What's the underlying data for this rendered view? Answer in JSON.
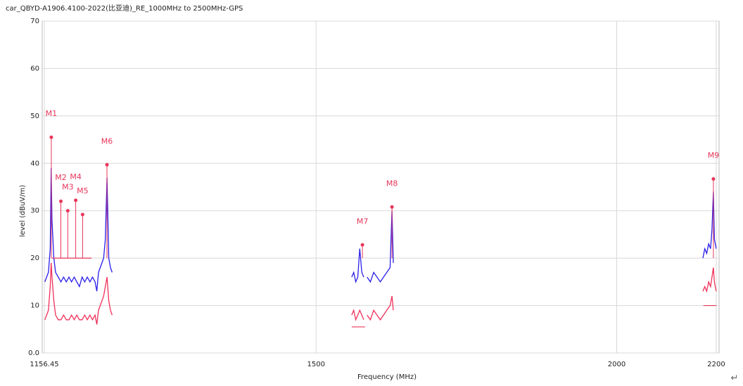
{
  "chart_data": {
    "type": "line",
    "title": "car_QBYD-A1906.4100-2022(比亚迪)_RE_1000MHz to 2500MHz-GPS",
    "xlabel": "Frequency (MHz)",
    "ylabel": "level (dBuV/m)",
    "xlog": true,
    "grid": true,
    "xlim": [
      1156.45,
      2200
    ],
    "ylim": [
      0,
      70
    ],
    "xticks": [
      1156.45,
      1500,
      2000,
      2200
    ],
    "yticks": [
      {
        "value": 0,
        "label": "0.0"
      },
      10,
      20,
      30,
      40,
      50,
      60,
      70
    ],
    "x": [
      1157,
      1159,
      1161,
      1163,
      1164,
      1165,
      1167,
      1169,
      1172,
      1175,
      1178,
      1181,
      1184,
      1187,
      1190,
      1193,
      1196,
      1199,
      1202,
      1205,
      1208,
      1211,
      1214,
      1216,
      1218,
      1220,
      1222,
      1224,
      1226,
      1228,
      1230,
      1232,
      1234,
      1236,
      1552,
      1555,
      1558,
      1561,
      1564,
      1567,
      1570,
      1572,
      1575,
      1580,
      1585,
      1590,
      1595,
      1600,
      1605,
      1610,
      1613,
      1615,
      1618,
      2172,
      2176,
      2180,
      2184,
      2188,
      2191,
      2194,
      2196,
      2198,
      2200
    ],
    "series": [
      {
        "color": "#2a1ee8",
        "values": [
          15,
          16,
          17,
          22,
          39,
          28,
          20,
          17,
          16,
          15,
          16,
          15,
          16,
          15,
          16,
          15,
          14,
          16,
          15,
          16,
          15,
          16,
          15,
          13,
          17,
          18,
          19,
          20,
          24,
          37,
          20,
          18,
          17,
          null,
          16,
          17,
          15,
          16,
          22,
          17,
          16,
          null,
          16,
          15,
          17,
          16,
          15,
          16,
          17,
          18,
          30,
          19,
          null,
          20,
          22,
          21,
          23,
          22,
          26,
          34,
          24,
          23,
          22
        ]
      },
      {
        "color": "#f0305a",
        "values": [
          7,
          8,
          9,
          14,
          19,
          16,
          11,
          8,
          7,
          7,
          8,
          7,
          7,
          8,
          7,
          8,
          7,
          7,
          8,
          7,
          8,
          7,
          8,
          6,
          9,
          10,
          11,
          12,
          14,
          16,
          11,
          9,
          8,
          null,
          8,
          9,
          7,
          8,
          9,
          8,
          7,
          null,
          8,
          7,
          9,
          8,
          7,
          8,
          9,
          10,
          12,
          9,
          null,
          13,
          14,
          13,
          15,
          14,
          16,
          18,
          15,
          14,
          13
        ]
      }
    ],
    "limit_lines": [
      {
        "x": [
          1165,
          1210
        ],
        "y": 20
      },
      {
        "x": [
          1552,
          1572
        ],
        "y": 5.5
      },
      {
        "x": [
          2173,
          2200
        ],
        "y": 10
      }
    ],
    "marker_color": "#e8365a",
    "markers": [
      {
        "label": "M1",
        "x": 1164.2,
        "y": 45.5
      },
      {
        "label": "M2",
        "x": 1174.9,
        "y": 32
      },
      {
        "label": "M3",
        "x": 1182.7,
        "y": 30
      },
      {
        "label": "M4",
        "x": 1191.7,
        "y": 32.2
      },
      {
        "label": "M5",
        "x": 1199.6,
        "y": 29.2
      },
      {
        "label": "M6",
        "x": 1227.9,
        "y": 39.7
      },
      {
        "label": "M7",
        "x": 1568,
        "y": 22.8
      },
      {
        "label": "M8",
        "x": 1613,
        "y": 30.8
      },
      {
        "label": "M9",
        "x": 2194,
        "y": 36.7
      }
    ]
  },
  "return_mark": "↵"
}
